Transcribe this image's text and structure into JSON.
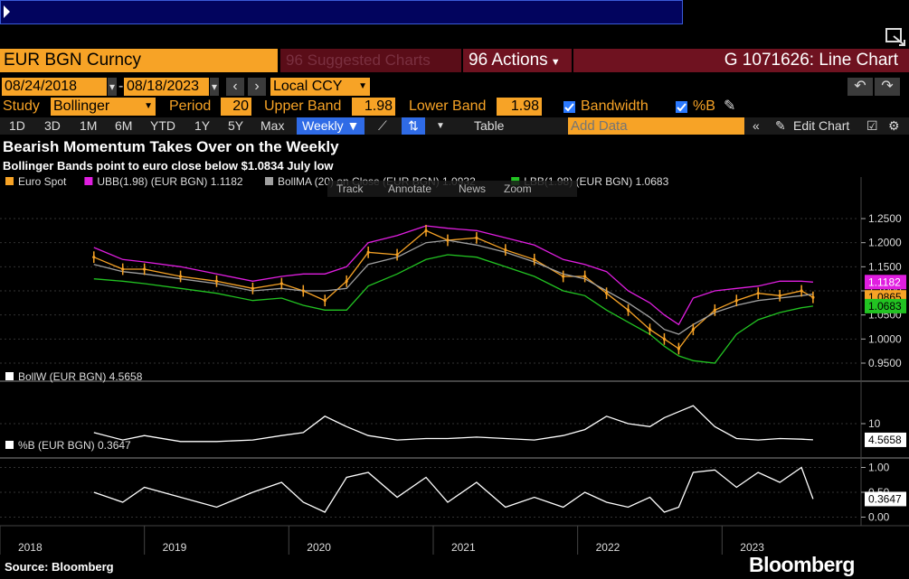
{
  "header": {
    "ticker": "EUR BGN Curncy",
    "suggested": "Suggested Charts",
    "actions": "Actions",
    "chart_id": "G 1071626: Line Chart"
  },
  "dates": {
    "start": "08/24/2018",
    "end": "08/18/2023",
    "currency": "Local CCY"
  },
  "study": {
    "label": "Study",
    "value": "Bollinger",
    "period_label": "Period",
    "period": "20",
    "upper_label": "Upper Band",
    "upper": "1.98",
    "lower_label": "Lower Band",
    "lower": "1.98",
    "bandwidth_label": "Bandwidth",
    "pctb_label": "%B"
  },
  "toolbar": {
    "ranges": [
      "1D",
      "3D",
      "1M",
      "6M",
      "YTD",
      "1Y",
      "5Y",
      "Max"
    ],
    "frequency": "Weekly",
    "table": "Table",
    "add_data_placeholder": "Add Data",
    "edit_chart": "Edit Chart"
  },
  "headline": "Bearish Momentum Takes Over on the Weekly",
  "subheadline": "Bollinger Bands point to euro close below $1.0834 July low",
  "source": "Source: Bloomberg",
  "brand": "Bloomberg",
  "overlay_toolbar": [
    "Track",
    "Annotate",
    "News",
    "Zoom"
  ],
  "colors": {
    "accent": "#f7a326",
    "upper_band": "#e01ee0",
    "mid_band": "#a0a0a0",
    "lower_band": "#22c322",
    "spot": "#f7a326"
  },
  "chart_data": [
    {
      "type": "line",
      "panel": "price",
      "legend": [
        {
          "name": "Euro Spot",
          "color": "#f7a326"
        },
        {
          "name": "UBB(1.98) (EUR BGN) 1.1182",
          "color": "#e01ee0"
        },
        {
          "name": "BollMA (20) on Close (EUR BGN) 1.0932",
          "color": "#a0a0a0"
        },
        {
          "name": "LBB(1.98) (EUR BGN) 1.0683",
          "color": "#22c322"
        }
      ],
      "ylim": [
        0.92,
        1.28
      ],
      "yticks": [
        "1.2500",
        "1.2000",
        "1.1500",
        "1.1000",
        "1.0500",
        "1.0000",
        "0.9500"
      ],
      "x": [
        2018.65,
        2018.85,
        2019.0,
        2019.25,
        2019.5,
        2019.75,
        2019.95,
        2020.1,
        2020.25,
        2020.4,
        2020.55,
        2020.75,
        2020.95,
        2021.1,
        2021.3,
        2021.5,
        2021.7,
        2021.9,
        2022.05,
        2022.2,
        2022.35,
        2022.5,
        2022.6,
        2022.7,
        2022.8,
        2022.95,
        2023.1,
        2023.25,
        2023.4,
        2023.55,
        2023.63
      ],
      "series": [
        {
          "name": "Euro Spot",
          "values": [
            1.17,
            1.145,
            1.145,
            1.13,
            1.12,
            1.105,
            1.115,
            1.1,
            1.08,
            1.12,
            1.18,
            1.175,
            1.225,
            1.205,
            1.21,
            1.185,
            1.165,
            1.13,
            1.13,
            1.095,
            1.06,
            1.02,
            1.0,
            0.98,
            1.02,
            1.06,
            1.08,
            1.095,
            1.09,
            1.1,
            1.0865
          ]
        },
        {
          "name": "UBB",
          "values": [
            1.19,
            1.165,
            1.16,
            1.15,
            1.135,
            1.12,
            1.13,
            1.135,
            1.135,
            1.15,
            1.2,
            1.215,
            1.235,
            1.23,
            1.225,
            1.21,
            1.195,
            1.165,
            1.155,
            1.14,
            1.1,
            1.075,
            1.05,
            1.03,
            1.085,
            1.1,
            1.105,
            1.11,
            1.12,
            1.12,
            1.1182
          ]
        },
        {
          "name": "BollMA",
          "values": [
            1.155,
            1.14,
            1.135,
            1.125,
            1.115,
            1.1,
            1.105,
            1.1,
            1.1,
            1.105,
            1.155,
            1.17,
            1.2,
            1.205,
            1.195,
            1.18,
            1.16,
            1.135,
            1.125,
            1.1,
            1.075,
            1.045,
            1.02,
            1.01,
            1.03,
            1.055,
            1.07,
            1.08,
            1.085,
            1.09,
            1.0932
          ]
        },
        {
          "name": "LBB",
          "values": [
            1.125,
            1.12,
            1.115,
            1.105,
            1.095,
            1.08,
            1.085,
            1.07,
            1.06,
            1.06,
            1.11,
            1.135,
            1.165,
            1.175,
            1.17,
            1.15,
            1.13,
            1.1,
            1.09,
            1.06,
            1.035,
            1.01,
            0.985,
            0.965,
            0.955,
            0.95,
            1.01,
            1.04,
            1.055,
            1.065,
            1.0683
          ]
        }
      ],
      "last_labels": [
        "1.1182",
        "1.0865",
        "1.0683"
      ]
    },
    {
      "type": "line",
      "panel": "bandwidth",
      "legend": [
        {
          "name": "BollW (EUR BGN) 4.5658",
          "color": "#ffffff"
        }
      ],
      "ylim": [
        0,
        20
      ],
      "yticks": [
        "10"
      ],
      "x": [
        2018.65,
        2018.85,
        2019.0,
        2019.25,
        2019.5,
        2019.75,
        2019.95,
        2020.1,
        2020.25,
        2020.4,
        2020.55,
        2020.75,
        2020.95,
        2021.1,
        2021.3,
        2021.5,
        2021.7,
        2021.9,
        2022.05,
        2022.2,
        2022.35,
        2022.5,
        2022.6,
        2022.7,
        2022.8,
        2022.95,
        2023.1,
        2023.25,
        2023.4,
        2023.55,
        2023.63
      ],
      "series": [
        {
          "name": "BollW",
          "values": [
            7,
            4.5,
            6,
            4,
            4,
            4.5,
            6,
            7,
            12.5,
            9,
            6,
            4.5,
            5,
            5,
            5.5,
            5,
            4.5,
            6,
            8,
            12.5,
            10,
            9,
            12,
            14,
            16,
            9,
            5,
            4.5,
            5,
            4.8,
            4.5658
          ]
        }
      ],
      "last_labels": [
        "4.5658"
      ]
    },
    {
      "type": "line",
      "panel": "percent-b",
      "legend": [
        {
          "name": "%B (EUR BGN) 0.3647",
          "color": "#ffffff"
        }
      ],
      "ylim": [
        -0.1,
        1.1
      ],
      "yticks": [
        "1.00",
        "0.50",
        "0.00"
      ],
      "x": [
        2018.65,
        2018.85,
        2019.0,
        2019.25,
        2019.5,
        2019.75,
        2019.95,
        2020.1,
        2020.25,
        2020.4,
        2020.55,
        2020.75,
        2020.95,
        2021.1,
        2021.3,
        2021.5,
        2021.7,
        2021.9,
        2022.05,
        2022.2,
        2022.35,
        2022.5,
        2022.6,
        2022.7,
        2022.8,
        2022.95,
        2023.1,
        2023.25,
        2023.4,
        2023.55,
        2023.63
      ],
      "series": [
        {
          "name": "%B",
          "values": [
            0.5,
            0.3,
            0.6,
            0.4,
            0.2,
            0.5,
            0.7,
            0.3,
            0.1,
            0.8,
            0.9,
            0.4,
            0.8,
            0.3,
            0.7,
            0.2,
            0.4,
            0.2,
            0.5,
            0.3,
            0.2,
            0.4,
            0.1,
            0.2,
            0.9,
            0.95,
            0.6,
            0.9,
            0.7,
            1.0,
            0.3647
          ]
        }
      ],
      "last_labels": [
        "0.3647"
      ]
    }
  ],
  "xaxis": {
    "ticks": [
      "2018",
      "2019",
      "2020",
      "2021",
      "2022",
      "2023"
    ],
    "range": [
      2018.0,
      2023.95
    ]
  }
}
